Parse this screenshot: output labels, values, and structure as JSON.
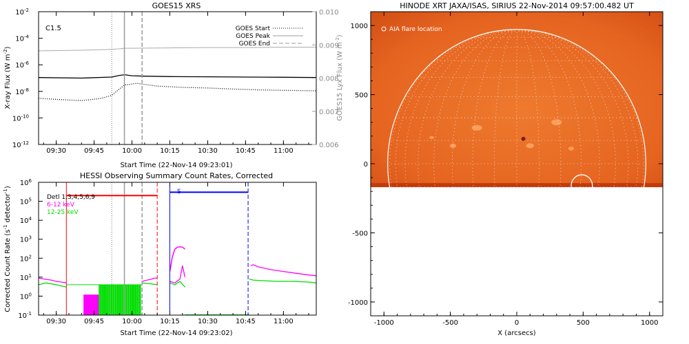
{
  "chart_data": [
    {
      "type": "line",
      "title": "GOES15 XRS",
      "xlabel": "Start Time (22-Nov-14 09:23:01)",
      "ylabel": "X-ray Flux (W m^-2)",
      "ylabel_right": "GOES15 Lyx Flux (W m^-2)",
      "annotation": "C1.5",
      "x_tick_labels": [
        "09:30",
        "09:45",
        "10:00",
        "10:15",
        "10:30",
        "10:45",
        "11:00"
      ],
      "x_ticks_min": [
        30,
        45,
        60,
        75,
        90,
        105,
        120
      ],
      "xlim_min": [
        23,
        133
      ],
      "y_log_range": [
        -12,
        -2
      ],
      "y_tick_exps": [
        -12,
        -10,
        -8,
        -6,
        -4,
        -2
      ],
      "y2_ticks": [
        "0.006",
        "0.007",
        "0.008",
        "0.009",
        "0.010"
      ],
      "legend": [
        {
          "label": "GOES Start",
          "style": "dotted"
        },
        {
          "label": "GOES Peak",
          "style": "solid"
        },
        {
          "label": "GOES End",
          "style": "dashed"
        }
      ],
      "markers_min": {
        "start": 52,
        "peak": 57,
        "end": 64
      },
      "series": [
        {
          "name": "Lyx (right axis)",
          "color": "#aaaaaa",
          "x": [
            23,
            40,
            50,
            55,
            57,
            60,
            75,
            90,
            105,
            120,
            133
          ],
          "y": [
            0.00882,
            0.00884,
            0.00886,
            0.00888,
            0.0089,
            0.0089,
            0.00891,
            0.00892,
            0.00892,
            0.00893,
            0.00893
          ]
        },
        {
          "color": "#000000",
          "style": "solid",
          "x": [
            23,
            40,
            52,
            55,
            57,
            60,
            65,
            75,
            90,
            105,
            120,
            133
          ],
          "y": [
            1.1e-07,
            1e-07,
            1.2e-07,
            1.6e-07,
            1.8e-07,
            1.5e-07,
            1.4e-07,
            1.3e-07,
            1.25e-07,
            1.2e-07,
            1.15e-07,
            1.1e-07
          ]
        },
        {
          "color": "#000000",
          "style": "dotted",
          "x": [
            23,
            30,
            40,
            48,
            52,
            55,
            57,
            62,
            70,
            80,
            90,
            100,
            110,
            120,
            133
          ],
          "y": [
            3e-09,
            2.5e-09,
            2e-09,
            3e-09,
            5e-09,
            1.5e-08,
            3e-08,
            4e-08,
            2.5e-08,
            2e-08,
            1.8e-08,
            1.5e-08,
            1.3e-08,
            1.2e-08,
            1.1e-08
          ]
        }
      ]
    },
    {
      "type": "line",
      "title": "HESSI Observing Summary Count Rates, Corrected",
      "xlabel": "Start Time (22-Nov-14 09:23:02)",
      "ylabel": "Corrected Count Rate (s^-1 detector^-1)",
      "x_tick_labels": [
        "09:30",
        "09:45",
        "10:00",
        "10:15",
        "10:30",
        "10:45",
        "11:00"
      ],
      "x_ticks_min": [
        30,
        45,
        60,
        75,
        90,
        105,
        120
      ],
      "xlim_min": [
        23,
        133
      ],
      "y_log_range": [
        -1,
        6
      ],
      "y_tick_exps": [
        -1,
        0,
        1,
        2,
        3,
        4,
        5,
        6
      ],
      "legend": [
        {
          "label": "Detl 1,3,4,5,6,9",
          "color": "#000000"
        },
        {
          "label": "6-12 keV",
          "color": "#ff00ff"
        },
        {
          "label": "12-25 keV",
          "color": "#00dd00"
        }
      ],
      "night_bar": {
        "x": [
          34,
          70
        ],
        "y": 200000.0,
        "color": "#ff0000",
        "start_min": 34,
        "end_min": 70
      },
      "saa_bar": {
        "label": "S",
        "x": [
          75,
          106
        ],
        "y": 300000.0,
        "color": "#0000ff",
        "start_min": 75,
        "end_min": 106
      },
      "markers_min": {
        "start": 52,
        "peak": 57,
        "end": 64
      },
      "series": [
        {
          "name": "6-12 keV",
          "color": "#ff00ff",
          "segments": [
            {
              "x": [
                23,
                25,
                28,
                30,
                32,
                34
              ],
              "y": [
                9,
                8,
                7,
                6,
                5.5,
                5
              ]
            },
            {
              "x": [
                64,
                66,
                68,
                69,
                70
              ],
              "y": [
                6,
                7,
                8,
                9,
                9
              ]
            },
            {
              "x": [
                75,
                77,
                79,
                80,
                81
              ],
              "y": [
                6,
                5,
                8,
                40,
                10
              ]
            },
            {
              "x": [
                107,
                108,
                110,
                115,
                120,
                125,
                130,
                133
              ],
              "y": [
                40,
                45,
                35,
                25,
                20,
                16,
                13,
                12
              ]
            }
          ]
        },
        {
          "name": "12-25 keV",
          "color": "#00dd00",
          "segments": [
            {
              "x": [
                23,
                26,
                30,
                34
              ],
              "y": [
                4,
                5,
                4,
                3
              ]
            },
            {
              "x": [
                64,
                67,
                70
              ],
              "y": [
                5,
                4.5,
                4
              ]
            },
            {
              "x": [
                75,
                77,
                79,
                81
              ],
              "y": [
                5,
                4,
                6,
                3
              ]
            },
            {
              "x": [
                106.5,
                108,
                112,
                118,
                124,
                130,
                133
              ],
              "y": [
                8,
                7,
                6.5,
                6,
                6,
                5.5,
                5
              ]
            }
          ]
        }
      ]
    },
    {
      "type": "map",
      "title": "HINODE XRT JAXA/ISAS, SIRIUS 22-Nov-2014 09:57:00.482 UT",
      "xlabel": "X (arcsecs)",
      "annotation": "AIA flare location",
      "x_ticks": [
        -1000,
        -500,
        0,
        500,
        1000
      ],
      "y_ticks": [
        -1000,
        -500,
        0,
        500,
        1000
      ],
      "xlim": [
        -1100,
        1100
      ],
      "ylim": [
        -1100,
        1100
      ],
      "image_extent_y": [
        -170,
        1100
      ],
      "solar_radius": 972,
      "flare_circle": {
        "x": 490,
        "y": -160,
        "r": 80
      },
      "colors": {
        "image": "#e86a1e",
        "image_bright": "#ffb070",
        "image_dark": "#c23a0a"
      }
    }
  ]
}
